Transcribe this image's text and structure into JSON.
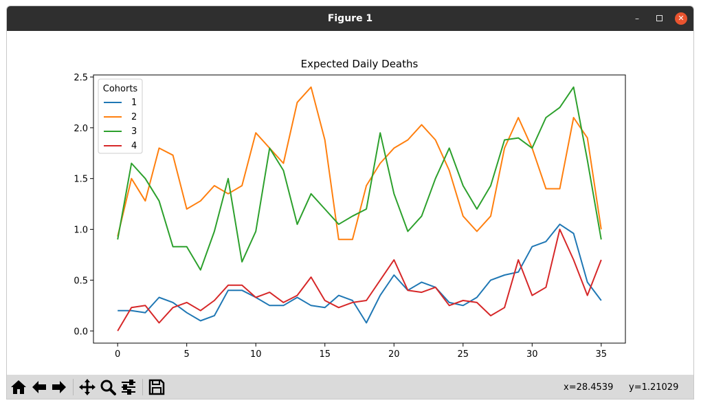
{
  "window": {
    "title": "Figure 1",
    "minimize_label": "–",
    "close_label": "✕"
  },
  "toolbar": {
    "buttons": [
      "home-icon",
      "back-arrow-icon",
      "forward-arrow-icon",
      "pan-icon",
      "zoom-icon",
      "configure-subplots-icon",
      "save-icon"
    ],
    "x_readout": "x=28.4539",
    "y_readout": "y=1.21029"
  },
  "chart_data": {
    "type": "line",
    "title": "Expected Daily Deaths",
    "xlabel": "",
    "ylabel": "",
    "xlim": [
      -1.75,
      36.75
    ],
    "ylim": [
      -0.12,
      2.52
    ],
    "xticks": [
      0,
      5,
      10,
      15,
      20,
      25,
      30,
      35
    ],
    "yticks": [
      0.0,
      0.5,
      1.0,
      1.5,
      2.0,
      2.5
    ],
    "xtick_labels": [
      "0",
      "5",
      "10",
      "15",
      "20",
      "25",
      "30",
      "35"
    ],
    "ytick_labels": [
      "0.0",
      "0.5",
      "1.0",
      "1.5",
      "2.0",
      "2.5"
    ],
    "grid": false,
    "legend": {
      "title": "Cohorts",
      "placement": "upper-left"
    },
    "x": [
      0,
      1,
      2,
      3,
      4,
      5,
      6,
      7,
      8,
      9,
      10,
      11,
      12,
      13,
      14,
      15,
      16,
      17,
      18,
      19,
      20,
      21,
      22,
      23,
      24,
      25,
      26,
      27,
      28,
      29,
      30,
      31,
      32,
      33,
      34,
      35
    ],
    "series": [
      {
        "name": "1",
        "color": "#1f77b4",
        "values": [
          0.2,
          0.2,
          0.18,
          0.33,
          0.28,
          0.18,
          0.1,
          0.15,
          0.4,
          0.4,
          0.33,
          0.25,
          0.25,
          0.33,
          0.25,
          0.23,
          0.35,
          0.3,
          0.08,
          0.35,
          0.55,
          0.4,
          0.48,
          0.43,
          0.28,
          0.25,
          0.33,
          0.5,
          0.55,
          0.58,
          0.83,
          0.88,
          1.05,
          0.96,
          0.48,
          0.3
        ]
      },
      {
        "name": "2",
        "color": "#ff7f0e",
        "values": [
          0.93,
          1.5,
          1.28,
          1.8,
          1.73,
          1.2,
          1.28,
          1.43,
          1.35,
          1.43,
          1.95,
          1.8,
          1.65,
          2.25,
          2.4,
          1.88,
          0.9,
          0.9,
          1.43,
          1.65,
          1.8,
          1.88,
          2.03,
          1.88,
          1.58,
          1.13,
          0.98,
          1.13,
          1.8,
          2.1,
          1.8,
          1.4,
          1.4,
          2.1,
          1.9,
          1.0
        ]
      },
      {
        "name": "3",
        "color": "#2ca02c",
        "values": [
          0.9,
          1.65,
          1.5,
          1.28,
          0.83,
          0.83,
          0.6,
          0.98,
          1.5,
          0.68,
          0.98,
          1.8,
          1.58,
          1.05,
          1.35,
          1.2,
          1.05,
          1.13,
          1.2,
          1.95,
          1.35,
          0.98,
          1.13,
          1.5,
          1.8,
          1.43,
          1.2,
          1.43,
          1.88,
          1.9,
          1.8,
          2.1,
          2.2,
          2.4,
          1.68,
          0.9
        ]
      },
      {
        "name": "4",
        "color": "#d62728",
        "values": [
          0.0,
          0.23,
          0.25,
          0.08,
          0.23,
          0.28,
          0.2,
          0.3,
          0.45,
          0.45,
          0.33,
          0.38,
          0.28,
          0.35,
          0.53,
          0.3,
          0.23,
          0.28,
          0.3,
          0.5,
          0.7,
          0.4,
          0.38,
          0.43,
          0.25,
          0.3,
          0.28,
          0.15,
          0.23,
          0.7,
          0.35,
          0.43,
          1.0,
          0.7,
          0.35,
          0.7
        ]
      }
    ]
  }
}
